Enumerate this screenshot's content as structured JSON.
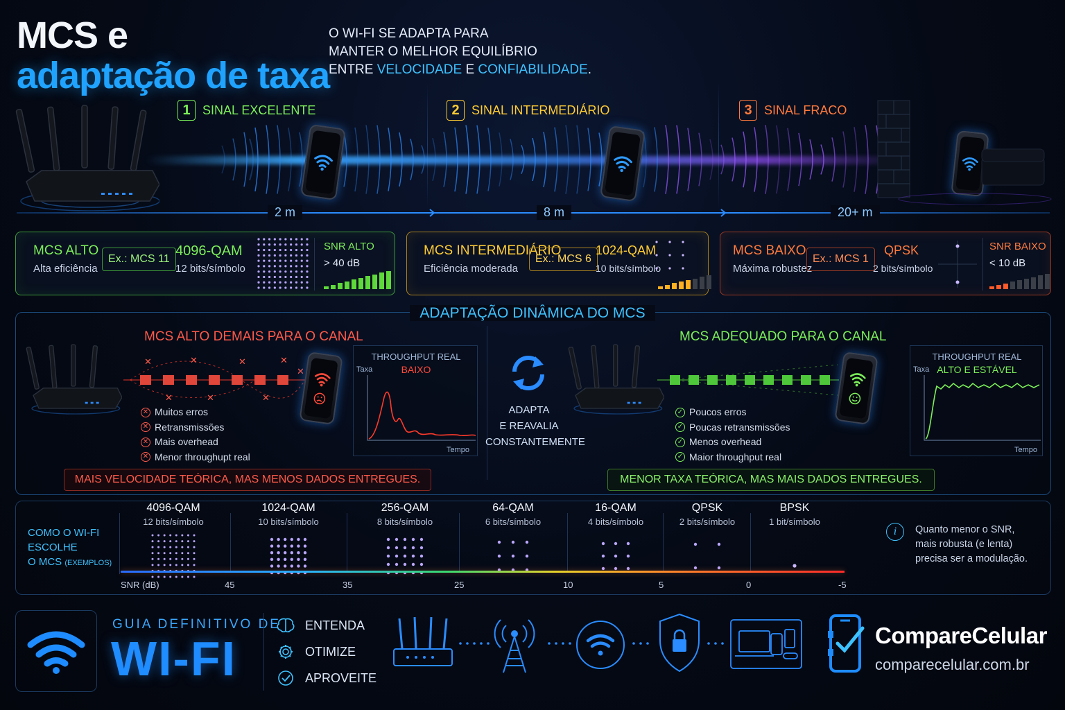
{
  "header": {
    "title_line1": "MCS e",
    "title_line2": "adaptação de taxa",
    "subtitle_line1": "O WI-FI SE ADAPTA PARA",
    "subtitle_line2": "MANTER O MELHOR EQUILÍBRIO",
    "subtitle_line3_pre": "ENTRE",
    "subtitle_hl1": "VELOCIDADE",
    "subtitle_mid": "E",
    "subtitle_hl2": "CONFIABILIDADE",
    "subtitle_end": "."
  },
  "stages": [
    {
      "num": "1",
      "label": "SINAL EXCELENTE",
      "color": "#7cf05a"
    },
    {
      "num": "2",
      "label": "SINAL INTERMEDIÁRIO",
      "color": "#ffcc33"
    },
    {
      "num": "3",
      "label": "SINAL FRACO",
      "color": "#ff7a3d"
    }
  ],
  "distances": [
    "2 m",
    "8 m",
    "20+ m"
  ],
  "mcs_cards": [
    {
      "name": "MCS ALTO",
      "desc": "Alta eficiência",
      "example": "Ex.: MCS 11",
      "qam": "4096-QAM",
      "bits": "12 bits/símbolo",
      "snr_label": "SNR ALTO",
      "snr_value": "> 40 dB",
      "signal_level": 1.0,
      "color": "#7cf05a"
    },
    {
      "name": "MCS INTERMEDIÁRIO",
      "desc": "Eficiência moderada",
      "example": "Ex.: MCS 6",
      "qam": "1024-QAM",
      "bits": "10 bits/símbolo",
      "signal_level": 0.6,
      "color": "#ffcc33"
    },
    {
      "name": "MCS BAIXO",
      "desc": "Máxima robustez",
      "example": "Ex.: MCS 1",
      "qam": "QPSK",
      "bits": "2 bits/símbolo",
      "snr_label": "SNR BAIXO",
      "snr_value": "< 10 dB",
      "signal_level": 0.3,
      "color": "#ff7a3d"
    }
  ],
  "dynamic": {
    "title": "ADAPTAÇÃO DINÂMICA DO MCS",
    "left": {
      "heading": "MCS ALTO DEMAIS PARA O CANAL",
      "items": [
        "Muitos erros",
        "Retransmissões",
        "Mais overhead",
        "Menor throughupt real"
      ],
      "graph_title": "THROUGHPUT REAL",
      "graph_value": "BAIXO",
      "y_label": "Taxa",
      "x_label": "Tempo",
      "banner": "MAIS VELOCIDADE TEÓRICA, MAS MENOS DADOS ENTREGUES."
    },
    "center": {
      "line1": "ADAPTA",
      "line2": "E REAVALIA",
      "line3": "CONSTANTEMENTE"
    },
    "right": {
      "heading": "MCS ADEQUADO PARA O CANAL",
      "items": [
        "Poucos erros",
        "Poucas retransmissões",
        "Menos overhead",
        "Maior throughput real"
      ],
      "graph_title": "THROUGHPUT REAL",
      "graph_value": "ALTO E ESTÁVEL",
      "y_label": "Taxa",
      "x_label": "Tempo",
      "banner": "MENOR TAXA TEÓRICA, MAS MAIS DADOS ENTREGUES."
    }
  },
  "scale": {
    "label_line1": "COMO O WI-FI",
    "label_line2": "ESCOLHE",
    "label_line3": "O MCS",
    "label_small": "(EXEMPLOS)",
    "axis_label": "SNR (dB)",
    "modulations": [
      {
        "name": "4096-QAM",
        "bits": "12 bits/símbolo",
        "grid": 8
      },
      {
        "name": "1024-QAM",
        "bits": "10 bits/símbolo",
        "grid": 6
      },
      {
        "name": "256-QAM",
        "bits": "8 bits/símbolo",
        "grid": 5
      },
      {
        "name": "64-QAM",
        "bits": "6 bits/símbolo",
        "grid": 3
      },
      {
        "name": "16-QAM",
        "bits": "4 bits/símbolo",
        "grid": 3
      },
      {
        "name": "QPSK",
        "bits": "2 bits/símbolo",
        "grid": 2
      },
      {
        "name": "BPSK",
        "bits": "1 bit/símbolo",
        "grid": 1
      }
    ],
    "ticks": [
      "45",
      "35",
      "25",
      "10",
      "5",
      "0",
      "-5"
    ],
    "note_line1": "Quanto menor o SNR,",
    "note_line2": "mais robusta (e lenta)",
    "note_line3": "precisa ser a modulação."
  },
  "footer": {
    "guide_line1": "GUIA DEFINITIVO DE",
    "guide_line2": "WI-FI",
    "actions": [
      "ENTENDA",
      "OTIMIZE",
      "APROVEITE"
    ],
    "brand_name": "CompareCelular",
    "brand_url": "comparecelular.com.br"
  }
}
